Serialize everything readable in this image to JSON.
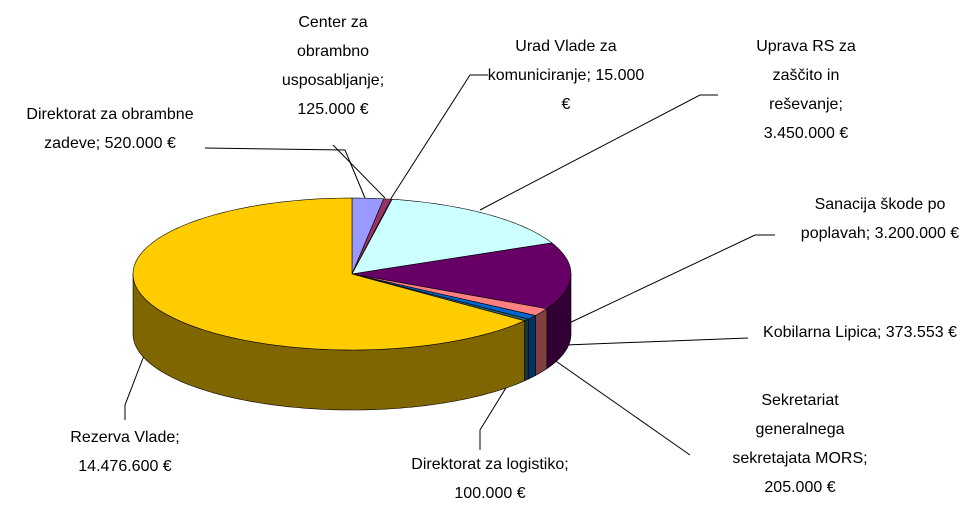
{
  "chart_data": {
    "type": "pie3d",
    "categories": [
      "Direktorat za obrambne zadeve",
      "Center za obrambno usposabljanje",
      "Urad Vlade za komuniciranje",
      "Uprava RS za zaščito in reševanje",
      "Sanacija škode po poplavah",
      "Kobilarna Lipica",
      "Sekretariat generalnega sekretajata MORS",
      "Direktorat za logistiko",
      "Rezerva Vlade"
    ],
    "values": [
      520000,
      125000,
      15000,
      3450000,
      3200000,
      373553,
      205000,
      100000,
      14476600
    ],
    "value_labels": [
      "520.000 €",
      "125.000 €",
      "15.000 €",
      "3.450.000 €",
      "3.200.000 €",
      "373.553 €",
      "205.000 €",
      "100.000 €",
      "14.476.600 €"
    ],
    "colors": [
      "#9999ff",
      "#993366",
      "#ffffcc",
      "#ccffff",
      "#660066",
      "#ff8080",
      "#0066cc",
      "#336666",
      "#ffcc00"
    ]
  }
}
